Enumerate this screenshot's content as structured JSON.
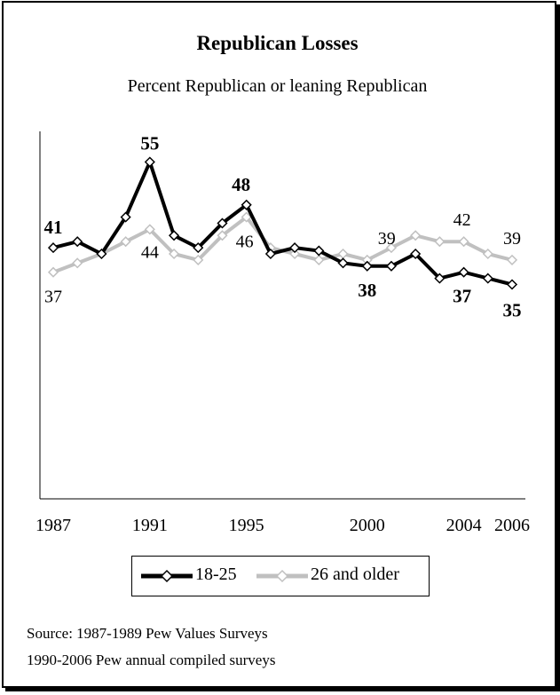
{
  "colors": {
    "young": "#000000",
    "older": "#c0c0c0"
  },
  "chart_data": {
    "type": "line",
    "title": "Republican Losses",
    "subtitle": "Percent Republican or leaning Republican",
    "ylim": [
      0,
      60
    ],
    "xlim": [
      1987,
      2006
    ],
    "x_ticks": [
      "1987",
      "1991",
      "1995",
      "2000",
      "2004",
      "2006"
    ],
    "legend_position": "bottom",
    "grid": false,
    "series": [
      {
        "name": "18-25",
        "x": [
          1987,
          1988,
          1989,
          1990,
          1991,
          1992,
          1993,
          1994,
          1995,
          1996,
          1997,
          1998,
          1999,
          2000,
          2001,
          2002,
          2003,
          2004,
          2005,
          2006
        ],
        "values": [
          41,
          42,
          40,
          46,
          55,
          43,
          41,
          45,
          48,
          40,
          41,
          40.5,
          38.5,
          38,
          38,
          40,
          36,
          37,
          36,
          35
        ]
      },
      {
        "name": "26 and older",
        "x": [
          1987,
          1988,
          1989,
          1990,
          1991,
          1992,
          1993,
          1994,
          1995,
          1996,
          1997,
          1998,
          1999,
          2000,
          2001,
          2002,
          2003,
          2004,
          2005,
          2006
        ],
        "values": [
          37,
          38.5,
          40,
          42,
          44,
          40,
          39,
          43,
          46,
          41,
          40,
          39,
          40,
          39,
          41,
          43,
          42,
          42,
          40,
          39
        ]
      }
    ],
    "annotations": [
      {
        "series": 0,
        "x": 1987,
        "text": "41"
      },
      {
        "series": 0,
        "x": 1991,
        "text": "55"
      },
      {
        "series": 0,
        "x": 1995,
        "text": "48"
      },
      {
        "series": 0,
        "x": 2000,
        "text": "38"
      },
      {
        "series": 0,
        "x": 2004,
        "text": "37"
      },
      {
        "series": 0,
        "x": 2006,
        "text": "35"
      },
      {
        "series": 1,
        "x": 1987,
        "text": "37"
      },
      {
        "series": 1,
        "x": 1991,
        "text": "44"
      },
      {
        "series": 1,
        "x": 1995,
        "text": "46"
      },
      {
        "series": 1,
        "x": 2000,
        "text": "39"
      },
      {
        "series": 1,
        "x": 2004,
        "text": "42"
      },
      {
        "series": 1,
        "x": 2006,
        "text": "39"
      }
    ]
  },
  "source": {
    "line1": "Source: 1987-1989 Pew Values Surveys",
    "line2": "1990-2006 Pew annual compiled surveys"
  }
}
